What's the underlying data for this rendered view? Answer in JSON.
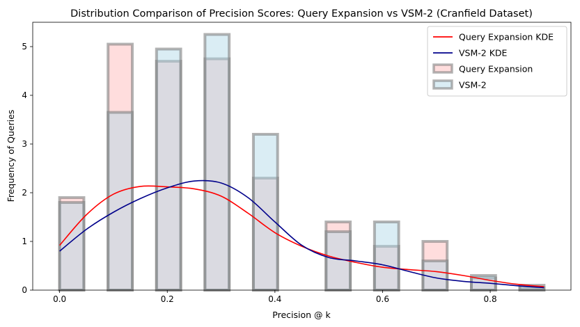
{
  "chart_data": {
    "type": "histogram",
    "title": "Distribution Comparison of Precision Scores: Query Expansion vs VSM-2 (Cranfield Dataset)",
    "xlabel": "Precision @ k",
    "ylabel": "Frequency of Queries",
    "xlim": [
      -0.05,
      0.95
    ],
    "ylim": [
      0,
      5.5
    ],
    "x_ticks": [
      "0.0",
      "0.2",
      "0.4",
      "0.6",
      "0.8"
    ],
    "y_ticks": [
      "0",
      "1",
      "2",
      "3",
      "4",
      "5"
    ],
    "bin_edges": [
      0.0,
      0.045,
      0.09,
      0.135,
      0.18,
      0.225,
      0.27,
      0.315,
      0.36,
      0.405,
      0.45,
      0.495,
      0.54,
      0.585,
      0.63,
      0.675,
      0.72,
      0.765,
      0.81,
      0.855,
      0.9
    ],
    "grid": false,
    "legend_position": "top-right",
    "series": [
      {
        "name": "Query Expansion",
        "kind": "hist",
        "color": "#ffb3b3",
        "edgecolor": "#808080",
        "values": [
          1.9,
          0,
          5.05,
          0,
          4.7,
          0,
          4.75,
          0,
          2.3,
          0,
          0,
          1.4,
          0,
          0.9,
          0,
          1.0,
          0,
          0.25,
          0,
          0.05
        ]
      },
      {
        "name": "VSM-2",
        "kind": "hist",
        "color": "#add8e6",
        "edgecolor": "#808080",
        "values": [
          1.8,
          0,
          3.65,
          0,
          4.95,
          0,
          5.25,
          0,
          3.2,
          0,
          0,
          1.2,
          0,
          1.4,
          0,
          0.6,
          0,
          0.3,
          0,
          0.1
        ]
      },
      {
        "name": "Query Expansion KDE",
        "kind": "line",
        "color": "#ff0000",
        "x": [
          0.0,
          0.05,
          0.1,
          0.15,
          0.2,
          0.25,
          0.3,
          0.35,
          0.4,
          0.45,
          0.5,
          0.55,
          0.6,
          0.65,
          0.7,
          0.75,
          0.8,
          0.85,
          0.9
        ],
        "y": [
          0.92,
          1.55,
          1.97,
          2.13,
          2.12,
          2.08,
          1.93,
          1.58,
          1.18,
          0.9,
          0.7,
          0.57,
          0.47,
          0.42,
          0.38,
          0.3,
          0.2,
          0.12,
          0.07
        ]
      },
      {
        "name": "VSM-2 KDE",
        "kind": "line",
        "color": "#00008b",
        "x": [
          0.0,
          0.05,
          0.1,
          0.15,
          0.2,
          0.25,
          0.3,
          0.35,
          0.4,
          0.45,
          0.5,
          0.55,
          0.6,
          0.65,
          0.7,
          0.75,
          0.8,
          0.85,
          0.9
        ],
        "y": [
          0.8,
          1.25,
          1.6,
          1.88,
          2.1,
          2.24,
          2.2,
          1.9,
          1.4,
          0.92,
          0.67,
          0.6,
          0.52,
          0.38,
          0.25,
          0.18,
          0.14,
          0.09,
          0.05
        ]
      }
    ]
  }
}
